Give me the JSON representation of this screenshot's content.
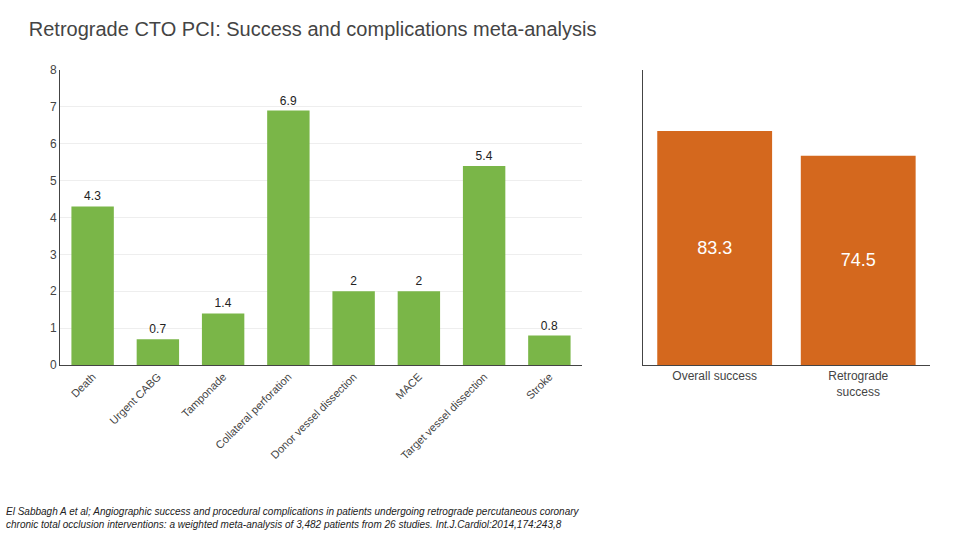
{
  "chart_data": [
    {
      "type": "bar",
      "title": "Retrograde CTO PCI: Success and complications meta-analysis",
      "categories": [
        "Death",
        "Urgent CABG",
        "Tamponade",
        "Collateral perforation",
        "Donor vessel dissection",
        "MACE",
        "Target vessel dissection",
        "Stroke"
      ],
      "values": [
        4.3,
        0.7,
        1.4,
        6.9,
        2.0,
        2.0,
        5.4,
        0.8
      ],
      "value_labels": [
        "4.3",
        "0.7",
        "1.4",
        "6.9",
        "2",
        "2",
        "5.4",
        "0.8"
      ],
      "data_labels": true,
      "color": "#7ab648",
      "ylim": [
        0,
        8
      ],
      "yticks": [
        0,
        1,
        2,
        3,
        4,
        5,
        6,
        7,
        8
      ],
      "grid": true,
      "annotations": [
        "El Sabbagh A et al; Angiographic success and procedural complications in patients undergoing retrograde percutaneous coronary\nchronic total occlusion interventions: a weighted meta-analysis of 3,482 patients from 26 studies. Int.J.Cardiol:2014,174:243,8"
      ]
    },
    {
      "type": "bar",
      "categories": [
        "Overall success",
        "Retrograde\nsuccess"
      ],
      "values": [
        83.3,
        74.5
      ],
      "data_labels": true,
      "color": "#d4681e",
      "ylim": [
        0,
        105
      ],
      "grid": false,
      "tick_labels": "x"
    }
  ]
}
